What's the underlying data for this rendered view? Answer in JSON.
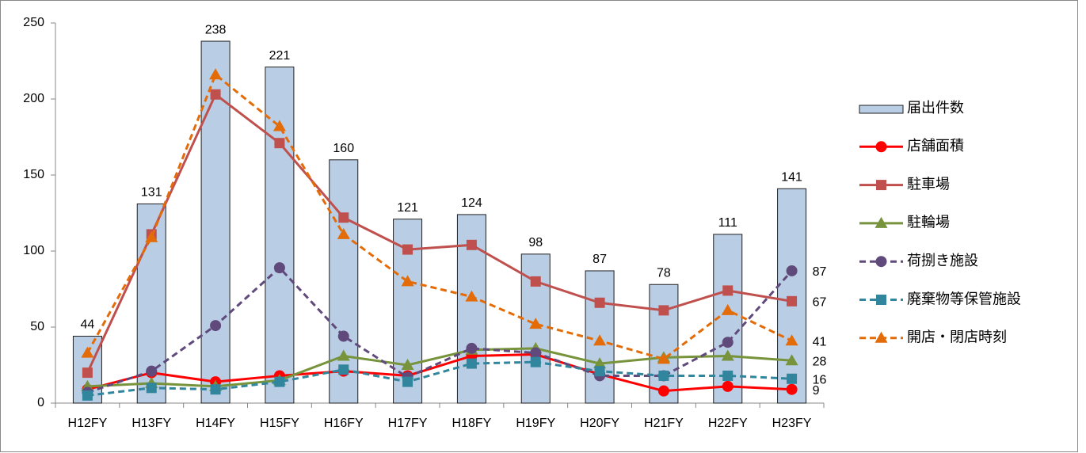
{
  "chart_data": {
    "type": "bar_line",
    "categories": [
      "H12FY",
      "H13FY",
      "H14FY",
      "H15FY",
      "H16FY",
      "H17FY",
      "H18FY",
      "H19FY",
      "H20FY",
      "H21FY",
      "H22FY",
      "H23FY"
    ],
    "ylim": [
      0,
      250
    ],
    "yticks": [
      0,
      50,
      100,
      150,
      200,
      250
    ],
    "legend": "right",
    "series": [
      {
        "name": "届出件数",
        "type": "bar",
        "color": "#b9cde5",
        "values": [
          44,
          131,
          238,
          221,
          160,
          121,
          124,
          98,
          87,
          78,
          111,
          141
        ]
      },
      {
        "name": "店舗面積",
        "type": "line",
        "color": "#ff0000",
        "marker": "circle",
        "dash": false,
        "values": [
          9,
          20,
          14,
          18,
          21,
          18,
          31,
          32,
          19,
          8,
          11,
          9
        ]
      },
      {
        "name": "駐車場",
        "type": "line",
        "color": "#c0504d",
        "marker": "square",
        "dash": false,
        "values": [
          20,
          111,
          203,
          171,
          122,
          101,
          104,
          80,
          66,
          61,
          74,
          67
        ]
      },
      {
        "name": "駐輪場",
        "type": "line",
        "color": "#77933c",
        "marker": "triangle",
        "dash": false,
        "values": [
          11,
          13,
          11,
          15,
          31,
          25,
          35,
          36,
          26,
          30,
          31,
          28
        ]
      },
      {
        "name": "荷捌き施設",
        "type": "line",
        "color": "#604a7b",
        "marker": "circle",
        "dash": true,
        "values": [
          7,
          21,
          51,
          89,
          44,
          17,
          36,
          33,
          18,
          18,
          40,
          87
        ]
      },
      {
        "name": "廃棄物等保管施設",
        "type": "line",
        "color": "#31859c",
        "marker": "square",
        "dash": true,
        "values": [
          5,
          10,
          9,
          14,
          22,
          14,
          26,
          27,
          21,
          18,
          18,
          16
        ]
      },
      {
        "name": "開店・閉店時刻",
        "type": "line",
        "color": "#e36c09",
        "marker": "triangle",
        "dash": true,
        "values": [
          33,
          109,
          216,
          182,
          111,
          80,
          70,
          52,
          41,
          29,
          61,
          41
        ]
      }
    ]
  }
}
